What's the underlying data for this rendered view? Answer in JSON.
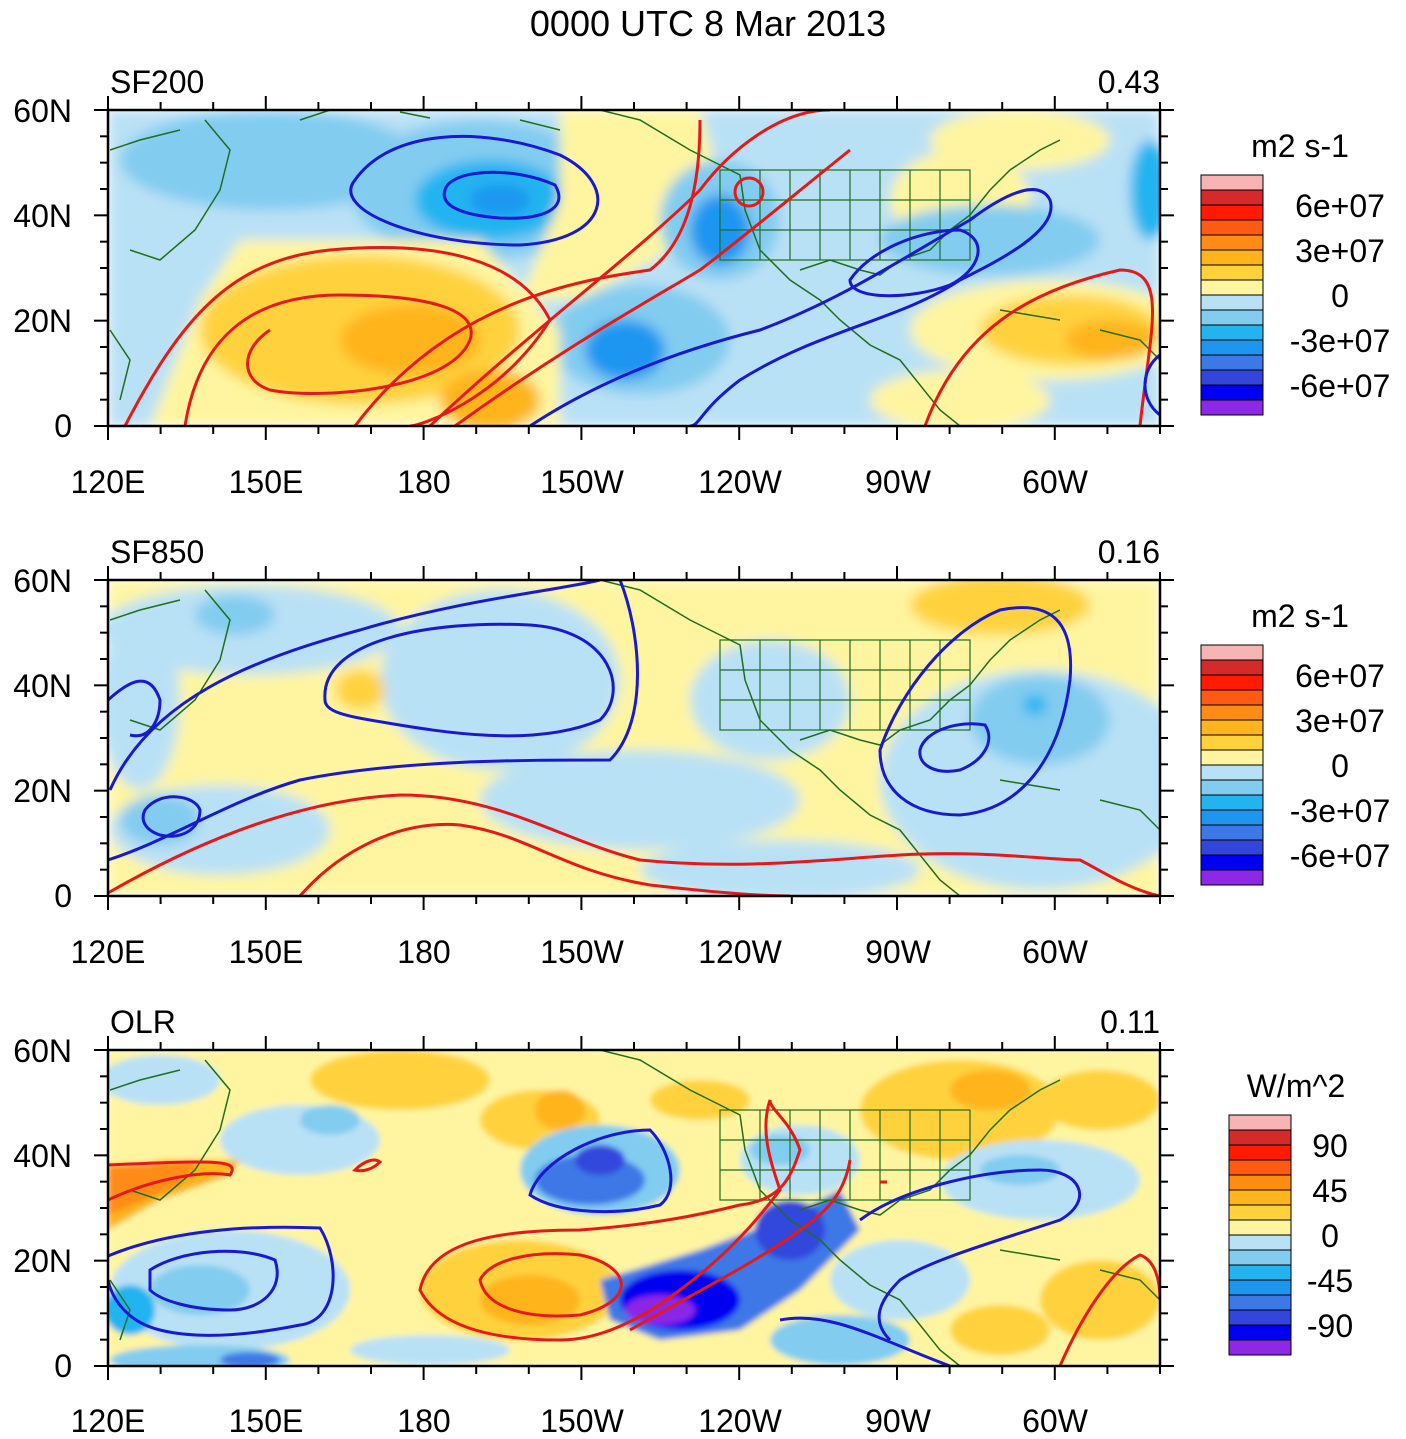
{
  "title": "0000 UTC 8 Mar 2013",
  "x_ticks": [
    "120E",
    "150E",
    "180",
    "150W",
    "120W",
    "90W",
    "60W"
  ],
  "y_ticks": [
    "60N",
    "40N",
    "20N",
    "0"
  ],
  "panels": [
    {
      "id": "sf200",
      "label": "SF200",
      "corr": "0.43",
      "units": "m2 s-1",
      "colorbar_labels": [
        "6e+07",
        "3e+07",
        "0",
        "-3e+07",
        "-6e+07"
      ]
    },
    {
      "id": "sf850",
      "label": "SF850",
      "corr": "0.16",
      "units": "m2 s-1",
      "colorbar_labels": [
        "6e+07",
        "3e+07",
        "0",
        "-3e+07",
        "-6e+07"
      ]
    },
    {
      "id": "olr",
      "label": "OLR",
      "corr": "0.11",
      "units": "W/m^2",
      "colorbar_labels": [
        "90",
        "45",
        "0",
        "-45",
        "-90"
      ]
    }
  ],
  "colors": {
    "palette": [
      "#f7b4b4",
      "#d42a2a",
      "#ff1a00",
      "#ff5a14",
      "#ff8c14",
      "#ffb41e",
      "#ffd23c",
      "#fff5a0",
      "#b9e1f5",
      "#82ccf0",
      "#23b4f0",
      "#1e96f0",
      "#3c78e6",
      "#3246dc",
      "#0000f0",
      "#8c28e6"
    ],
    "contour_positive": "#e61919",
    "contour_negative": "#1919d2",
    "coastline": "#1e6e1e"
  }
}
